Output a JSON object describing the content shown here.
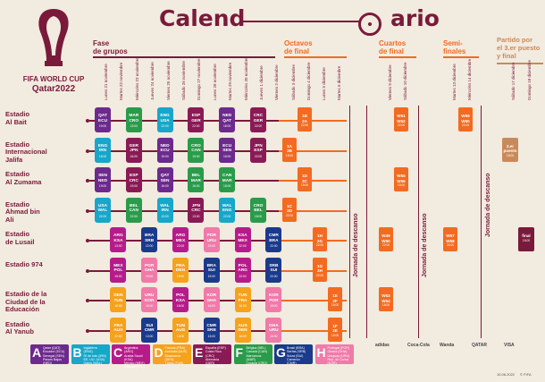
{
  "header": {
    "title_left": "Calend",
    "title_right": "ario",
    "logo_line1": "FIFA WORLD CUP",
    "logo_line2": "Qatar2022"
  },
  "stages": [
    {
      "label": "Fase\nde grupos",
      "color": "#7a1a3a"
    },
    {
      "label": "Octavos\nde final",
      "color": "#f26b21"
    },
    {
      "label": "Cuartos\nde final",
      "color": "#f26b21"
    },
    {
      "label": "Semi-\nfinales",
      "color": "#f26b21"
    },
    {
      "label": "Partido por\nel 3.er puesto\ny final",
      "color": "#c98a5a"
    }
  ],
  "dates_group": [
    "Lunes 21 noviembre",
    "Martes 22 noviembre",
    "Miércoles 23 noviembre",
    "Jueves 24 noviembre",
    "Viernes 25 noviembre",
    "Sábado 26 noviembre",
    "Domingo 27 noviembre",
    "Lunes 28 noviembre",
    "Martes 29 noviembre",
    "Miércoles 30 noviembre",
    "Jueves 1 diciembre",
    "Viernes 2 diciembre"
  ],
  "dates_r16": [
    "Sábado 3 diciembre",
    "Domingo 4 diciembre",
    "Lunes 5 diciembre",
    "Martes 6 diciembre"
  ],
  "dates_qf": [
    "Viernes 9 diciembre",
    "Sábado 10 diciembre"
  ],
  "dates_sf": [
    "Martes 13 diciembre",
    "Miércoles 14 diciembre"
  ],
  "dates_final": [
    "Sábado 17 diciembre",
    "Domingo 18 diciembre"
  ],
  "stadiums": [
    {
      "name": "Estadio\nAl Bait"
    },
    {
      "name": "Estadio\nInternacional\nJalifa"
    },
    {
      "name": "Estadio\nAl Zumama"
    },
    {
      "name": "Estadio\nÁhmad bin\nAli"
    },
    {
      "name": "Estadio\nde Lusail"
    },
    {
      "name": "Estadio 974"
    },
    {
      "name": "Estadio de la\nCiudad de la\nEducación"
    },
    {
      "name": "Estadio\nAl Yanub"
    }
  ],
  "rest_days": [
    "Jornada de descanso",
    "Jornada de descanso",
    "Jornada de descanso",
    "Jornada de descanso"
  ],
  "group_matches": [
    {
      "row": 0,
      "col": 0,
      "t1": "QAT",
      "t2": "ECU",
      "time": "19:00",
      "color": "#6b2a8c"
    },
    {
      "row": 0,
      "col": 2,
      "t1": "MAR",
      "t2": "CRO",
      "time": "13:00",
      "color": "#2a9b4a"
    },
    {
      "row": 0,
      "col": 4,
      "t1": "ENG",
      "t2": "USA",
      "time": "22:00",
      "color": "#16a7c9"
    },
    {
      "row": 0,
      "col": 6,
      "t1": "ESP",
      "t2": "GER",
      "time": "22:00",
      "color": "#8a1a56"
    },
    {
      "row": 0,
      "col": 8,
      "t1": "NED",
      "t2": "QAT",
      "time": "18:00",
      "color": "#6b2a8c"
    },
    {
      "row": 0,
      "col": 10,
      "t1": "CRC",
      "t2": "GER",
      "time": "22:00",
      "color": "#8a1a56"
    },
    {
      "row": 1,
      "col": 0,
      "t1": "ENG",
      "t2": "IRN",
      "time": "16:00",
      "color": "#16a7c9"
    },
    {
      "row": 1,
      "col": 2,
      "t1": "GER",
      "t2": "JPN",
      "time": "16:00",
      "color": "#8a1a56"
    },
    {
      "row": 1,
      "col": 4,
      "t1": "NED",
      "t2": "ECU",
      "time": "19:00",
      "color": "#6b2a8c"
    },
    {
      "row": 1,
      "col": 6,
      "t1": "CRO",
      "t2": "CAN",
      "time": "19:00",
      "color": "#2a9b4a"
    },
    {
      "row": 1,
      "col": 8,
      "t1": "ECU",
      "t2": "SEN",
      "time": "18:00",
      "color": "#6b2a8c"
    },
    {
      "row": 1,
      "col": 10,
      "t1": "JPN",
      "t2": "ESP",
      "time": "22:00",
      "color": "#8a1a56"
    },
    {
      "row": 2,
      "col": 0,
      "t1": "SEN",
      "t2": "NED",
      "time": "19:00",
      "color": "#6b2a8c"
    },
    {
      "row": 2,
      "col": 2,
      "t1": "ESP",
      "t2": "CRC",
      "time": "19:00",
      "color": "#8a1a56"
    },
    {
      "row": 2,
      "col": 4,
      "t1": "QAT",
      "t2": "SEN",
      "time": "16:00",
      "color": "#6b2a8c"
    },
    {
      "row": 2,
      "col": 6,
      "t1": "BEL",
      "t2": "MAR",
      "time": "16:00",
      "color": "#2a9b4a"
    },
    {
      "row": 2,
      "col": 8,
      "t1": "CAN",
      "t2": "MAR",
      "time": "18:00",
      "color": "#2a9b4a"
    },
    {
      "row": 3,
      "col": 0,
      "t1": "USA",
      "t2": "WAL",
      "time": "22:00",
      "color": "#16a7c9"
    },
    {
      "row": 3,
      "col": 2,
      "t1": "BEL",
      "t2": "CAN",
      "time": "22:00",
      "color": "#2a9b4a"
    },
    {
      "row": 3,
      "col": 4,
      "t1": "WAL",
      "t2": "IRN",
      "time": "13:00",
      "color": "#16a7c9"
    },
    {
      "row": 3,
      "col": 6,
      "t1": "JPN",
      "t2": "CRC",
      "time": "13:00",
      "color": "#8a1a56"
    },
    {
      "row": 3,
      "col": 8,
      "t1": "WAL",
      "t2": "ENG",
      "time": "22:00",
      "color": "#16a7c9"
    },
    {
      "row": 3,
      "col": 10,
      "t1": "CRO",
      "t2": "BEL",
      "time": "18:00",
      "color": "#2a9b4a"
    },
    {
      "row": 4,
      "col": 1,
      "t1": "ARG",
      "t2": "KSA",
      "time": "13:00",
      "color": "#b51c8a"
    },
    {
      "row": 4,
      "col": 3,
      "t1": "BRA",
      "t2": "SRB",
      "time": "22:00",
      "color": "#1a3a8c"
    },
    {
      "row": 4,
      "col": 5,
      "t1": "ARG",
      "t2": "MEX",
      "time": "22:00",
      "color": "#b51c8a"
    },
    {
      "row": 4,
      "col": 7,
      "t1": "POR",
      "t2": "URU",
      "time": "22:00",
      "color": "#f07aa8"
    },
    {
      "row": 4,
      "col": 9,
      "t1": "KSA",
      "t2": "MEX",
      "time": "22:00",
      "color": "#b51c8a"
    },
    {
      "row": 4,
      "col": 11,
      "t1": "CMR",
      "t2": "BRA",
      "time": "22:00",
      "color": "#1a3a8c"
    },
    {
      "row": 5,
      "col": 1,
      "t1": "MEX",
      "t2": "POL",
      "time": "19:00",
      "color": "#b51c8a"
    },
    {
      "row": 5,
      "col": 3,
      "t1": "POR",
      "t2": "GHA",
      "time": "19:00",
      "color": "#f07aa8"
    },
    {
      "row": 5,
      "col": 5,
      "t1": "FRA",
      "t2": "DEN",
      "time": "19:00",
      "color": "#f5a21c"
    },
    {
      "row": 5,
      "col": 7,
      "t1": "BRA",
      "t2": "SUI",
      "time": "19:00",
      "color": "#1a3a8c"
    },
    {
      "row": 5,
      "col": 9,
      "t1": "POL",
      "t2": "ARG",
      "time": "22:00",
      "color": "#b51c8a"
    },
    {
      "row": 5,
      "col": 11,
      "t1": "SRB",
      "t2": "SUI",
      "time": "22:00",
      "color": "#1a3a8c"
    },
    {
      "row": 6,
      "col": 1,
      "t1": "DEN",
      "t2": "TUN",
      "time": "16:00",
      "color": "#f5a21c"
    },
    {
      "row": 6,
      "col": 3,
      "t1": "URU",
      "t2": "KOR",
      "time": "16:00",
      "color": "#f07aa8"
    },
    {
      "row": 6,
      "col": 5,
      "t1": "POL",
      "t2": "KSA",
      "time": "16:00",
      "color": "#b51c8a"
    },
    {
      "row": 6,
      "col": 7,
      "t1": "KOR",
      "t2": "GHA",
      "time": "16:00",
      "color": "#f07aa8"
    },
    {
      "row": 6,
      "col": 9,
      "t1": "TUN",
      "t2": "FRA",
      "time": "18:00",
      "color": "#f5a21c"
    },
    {
      "row": 6,
      "col": 11,
      "t1": "KOR",
      "t2": "POR",
      "time": "18:00",
      "color": "#f07aa8"
    },
    {
      "row": 7,
      "col": 1,
      "t1": "FRA",
      "t2": "AUS",
      "time": "22:00",
      "color": "#f5a21c"
    },
    {
      "row": 7,
      "col": 3,
      "t1": "SUI",
      "t2": "CMR",
      "time": "13:00",
      "color": "#1a3a8c"
    },
    {
      "row": 7,
      "col": 5,
      "t1": "TUN",
      "t2": "AUS",
      "time": "13:00",
      "color": "#f5a21c"
    },
    {
      "row": 7,
      "col": 7,
      "t1": "CMR",
      "t2": "SRB",
      "time": "13:00",
      "color": "#1a3a8c"
    },
    {
      "row": 7,
      "col": 9,
      "t1": "AUS",
      "t2": "DEN",
      "time": "18:00",
      "color": "#f5a21c"
    },
    {
      "row": 7,
      "col": 11,
      "t1": "GHA",
      "t2": "URU",
      "time": "18:00",
      "color": "#f07aa8"
    }
  ],
  "r16_matches": [
    {
      "row": 0,
      "col": 1,
      "t1": "1B",
      "t2": "2A",
      "time": "22:00"
    },
    {
      "row": 1,
      "col": 0,
      "t1": "1A",
      "t2": "2B",
      "time": "18:00"
    },
    {
      "row": 2,
      "col": 1,
      "t1": "1D",
      "t2": "2C",
      "time": "18:00"
    },
    {
      "row": 3,
      "col": 0,
      "t1": "1C",
      "t2": "2D",
      "time": "22:00"
    },
    {
      "row": 4,
      "col": 2,
      "t1": "1H",
      "t2": "2G",
      "time": "22:00"
    },
    {
      "row": 5,
      "col": 2,
      "t1": "1G",
      "t2": "2H",
      "time": "22:00"
    },
    {
      "row": 6,
      "col": 3,
      "t1": "1E",
      "t2": "2F",
      "time": "18:00"
    },
    {
      "row": 7,
      "col": 3,
      "t1": "1F",
      "t2": "2E",
      "time": "18:00"
    }
  ],
  "qf_matches": [
    {
      "row": 0,
      "col": 1,
      "t1": "W51",
      "t2": "W52",
      "time": "22:00"
    },
    {
      "row": 2,
      "col": 1,
      "t1": "W55",
      "t2": "W56",
      "time": "18:00"
    },
    {
      "row": 4,
      "col": 0,
      "t1": "W49",
      "t2": "W50",
      "time": "22:00"
    },
    {
      "row": 6,
      "col": 0,
      "t1": "W53",
      "t2": "W54",
      "time": "18:00"
    }
  ],
  "sf_matches": [
    {
      "row": 0,
      "col": 1,
      "t1": "W59",
      "t2": "W60",
      "time": "22:00"
    },
    {
      "row": 4,
      "col": 0,
      "t1": "W57",
      "t2": "W58",
      "time": "22:00"
    }
  ],
  "final_matches": [
    {
      "row": 1,
      "col": 0,
      "t1": "3.er",
      "t2": "puesto",
      "time": "18:00"
    },
    {
      "row": 4,
      "col": 1,
      "t1": "final",
      "t2": "",
      "time": "18:00"
    }
  ],
  "groups": [
    {
      "letter": "A",
      "color": "#6b2a8c",
      "teams": [
        "Qatar (QAT)",
        "Ecuador (ECU)",
        "Senegal (SEN)",
        "Países Bajos (NED)"
      ]
    },
    {
      "letter": "B",
      "color": "#16a7c9",
      "teams": [
        "Inglaterra (ENG)",
        "RI de Irán (IRN)",
        "EE. UU. (USA)",
        "Gales (WAL)"
      ]
    },
    {
      "letter": "C",
      "color": "#b51c8a",
      "teams": [
        "Argentina (ARG)",
        "Arabia Saudí (KSA)",
        "México (MEX)",
        "Polonia (POL)"
      ]
    },
    {
      "letter": "D",
      "color": "#f5a21c",
      "teams": [
        "Francia (FRA)",
        "Australia (AUS)",
        "Dinamarca (DEN)",
        "Túnez (TUN)"
      ]
    },
    {
      "letter": "E",
      "color": "#8a1a56",
      "teams": [
        "España (ESP)",
        "Costa Rica (CRC)",
        "Alemania (GER)",
        "Japón (JPN)"
      ]
    },
    {
      "letter": "F",
      "color": "#2a9b4a",
      "teams": [
        "Bélgica (BEL)",
        "Canadá (CAN)",
        "Marruecos (MAR)",
        "Croacia (CRO)"
      ]
    },
    {
      "letter": "G",
      "color": "#1a3a8c",
      "teams": [
        "Brasil (BRA)",
        "Serbia (SRB)",
        "Suiza (SUI)",
        "Camerún (CMR)"
      ]
    },
    {
      "letter": "H",
      "color": "#f07aa8",
      "teams": [
        "Portugal (POR)",
        "Ghana (GHA)",
        "Uruguay (URU)",
        "Rep. de Corea (KOR)"
      ]
    }
  ],
  "sponsors": [
    "adidas",
    "Coca-Cola",
    "Wanda",
    "QATAR",
    "VISA"
  ],
  "footer": {
    "date": "15.06.2022",
    "copyright": "© FIFA"
  }
}
